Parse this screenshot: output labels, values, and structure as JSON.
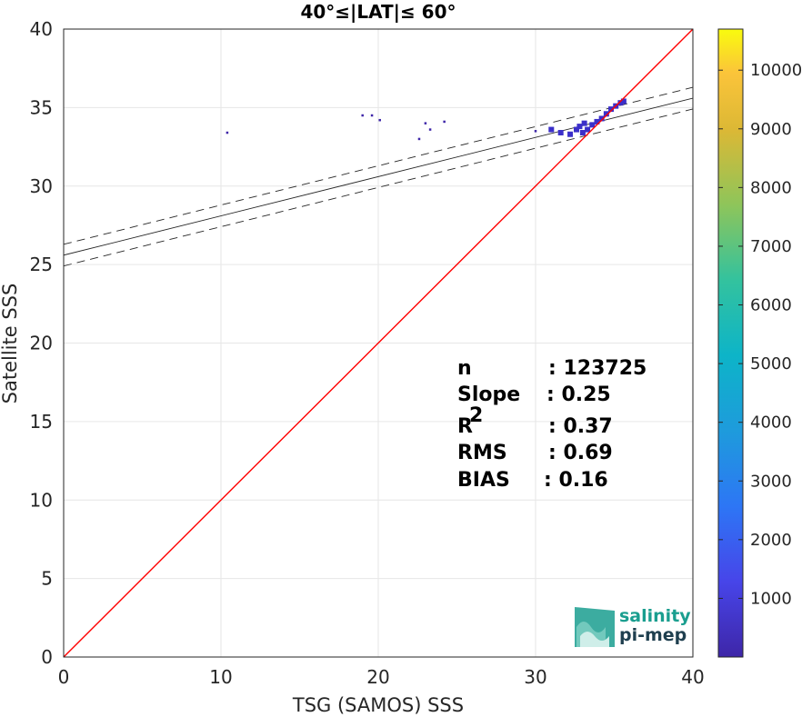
{
  "chart_data": {
    "type": "heatmap",
    "title_prefix": "40°≤|LAT|≤ 60°",
    "xlabel": "TSG (SAMOS) SSS",
    "ylabel": "Satellite SSS",
    "xlim": [
      0,
      40
    ],
    "ylim": [
      0,
      40
    ],
    "xticks": [
      "0",
      "10",
      "20",
      "30",
      "40"
    ],
    "yticks": [
      "0",
      "5",
      "10",
      "15",
      "20",
      "25",
      "30",
      "35",
      "40"
    ],
    "grid": true,
    "colorbar": {
      "min": 0,
      "max": 10700,
      "ticks": [
        "1000",
        "2000",
        "3000",
        "4000",
        "5000",
        "6000",
        "7000",
        "8000",
        "9000",
        "10000"
      ],
      "tick_values": [
        1000,
        2000,
        3000,
        4000,
        5000,
        6000,
        7000,
        8000,
        9000,
        10000
      ],
      "colormap": "parula"
    },
    "one_to_one_line": {
      "color": "#ff0000"
    },
    "regression": {
      "slope": 0.25,
      "intercept": 25.6,
      "band": 0.69
    },
    "density_points": [
      [
        10.4,
        33.4
      ],
      [
        19.0,
        34.5
      ],
      [
        19.6,
        34.5
      ],
      [
        20.1,
        34.2
      ],
      [
        22.6,
        33.0
      ],
      [
        23.0,
        34.0
      ],
      [
        23.3,
        33.6
      ],
      [
        24.2,
        34.1
      ],
      [
        30.0,
        33.5
      ],
      [
        31.0,
        33.6
      ],
      [
        31.6,
        33.4
      ],
      [
        32.2,
        33.3
      ],
      [
        32.8,
        33.8
      ],
      [
        33.0,
        33.4
      ],
      [
        33.3,
        33.6
      ],
      [
        33.6,
        33.9
      ],
      [
        33.9,
        34.1
      ],
      [
        34.2,
        34.3
      ],
      [
        34.5,
        34.6
      ],
      [
        34.8,
        34.9
      ],
      [
        35.1,
        35.1
      ],
      [
        35.4,
        35.3
      ],
      [
        35.6,
        35.4
      ],
      [
        33.1,
        34.0
      ],
      [
        32.6,
        33.6
      ]
    ],
    "stats": [
      {
        "label": "n",
        "value": ": 123725"
      },
      {
        "label": "Slope",
        "value": ": 0.25"
      },
      {
        "label": "R",
        "value": ": 0.37",
        "sup": "2"
      },
      {
        "label": "RMS",
        "value": ": 0.69"
      },
      {
        "label": "BIAS",
        "value": ": 0.16"
      }
    ]
  },
  "logo": {
    "line1": "salinity",
    "line2": "pi-mep"
  },
  "colors": {
    "accent": "#1a9e8f",
    "logo_dark": "#1f3f4f"
  }
}
